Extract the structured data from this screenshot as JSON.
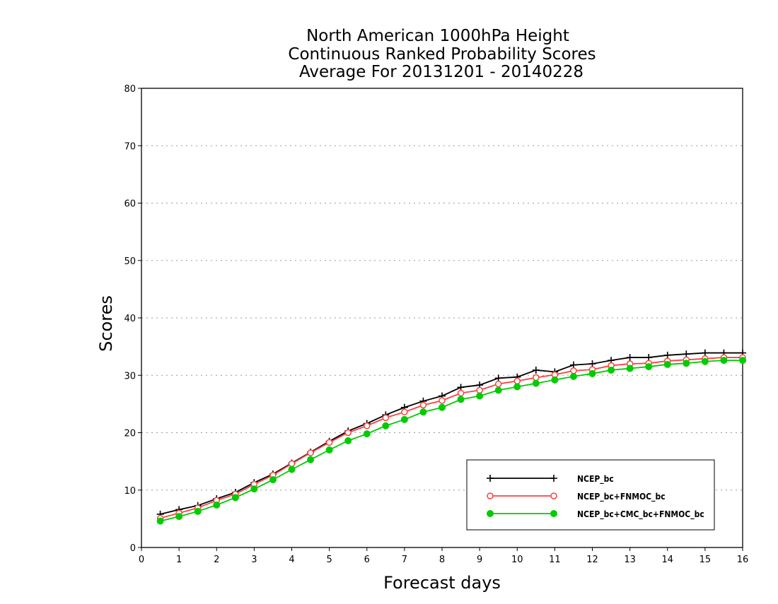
{
  "chart_data": {
    "type": "line",
    "title_lines": [
      "North American 1000hPa Height",
      "Continuous Ranked Probability Scores",
      "Average For 20131201 - 20140228"
    ],
    "xlabel": "Forecast days",
    "ylabel": "Scores",
    "xlim": [
      0,
      16
    ],
    "ylim": [
      0,
      80
    ],
    "xticks": [
      "0",
      "1",
      "2",
      "3",
      "4",
      "5",
      "6",
      "7",
      "8",
      "9",
      "10",
      "11",
      "12",
      "13",
      "14",
      "15",
      "16"
    ],
    "yticks": [
      "0",
      "10",
      "20",
      "30",
      "40",
      "50",
      "60",
      "70",
      "80"
    ],
    "grid": "horizontal dotted",
    "legend_position": "bottom-right",
    "x": [
      0.5,
      1,
      1.5,
      2,
      2.5,
      3,
      3.5,
      4,
      4.5,
      5,
      5.5,
      6,
      6.5,
      7,
      7.5,
      8,
      8.5,
      9,
      9.5,
      10,
      10.5,
      11,
      11.5,
      12,
      12.5,
      13,
      13.5,
      14,
      14.5,
      15,
      15.5,
      16
    ],
    "series": [
      {
        "name": "NCEP_bc",
        "color": "#000000",
        "marker": "plus",
        "values": [
          5.8,
          6.6,
          7.3,
          8.5,
          9.6,
          11.3,
          12.8,
          14.7,
          16.6,
          18.5,
          20.3,
          21.6,
          23.1,
          24.4,
          25.5,
          26.4,
          27.9,
          28.3,
          29.5,
          29.7,
          30.9,
          30.6,
          31.8,
          32.0,
          32.6,
          33.1,
          33.1,
          33.5,
          33.7,
          33.9,
          33.9,
          33.9
        ]
      },
      {
        "name": "NCEP_bc+FNMOC_bc",
        "color": "#ff4040",
        "marker": "open-circle",
        "values": [
          5.1,
          6.0,
          6.9,
          8.2,
          9.3,
          11.0,
          12.6,
          14.6,
          16.5,
          18.3,
          20.0,
          21.2,
          22.6,
          23.6,
          24.8,
          25.6,
          26.9,
          27.4,
          28.5,
          29.0,
          29.6,
          30.1,
          30.8,
          31.0,
          31.7,
          32.0,
          32.1,
          32.5,
          32.7,
          32.9,
          33.1,
          33.1
        ]
      },
      {
        "name": "NCEP_bc+CMC_bc+FNMOC_bc",
        "color": "#00cc00",
        "marker": "filled-circle",
        "values": [
          4.6,
          5.4,
          6.3,
          7.4,
          8.7,
          10.2,
          11.8,
          13.6,
          15.3,
          17.0,
          18.6,
          19.8,
          21.2,
          22.3,
          23.6,
          24.4,
          25.8,
          26.4,
          27.4,
          28.0,
          28.6,
          29.2,
          29.8,
          30.3,
          30.9,
          31.2,
          31.5,
          31.9,
          32.1,
          32.4,
          32.6,
          32.6
        ]
      }
    ]
  }
}
